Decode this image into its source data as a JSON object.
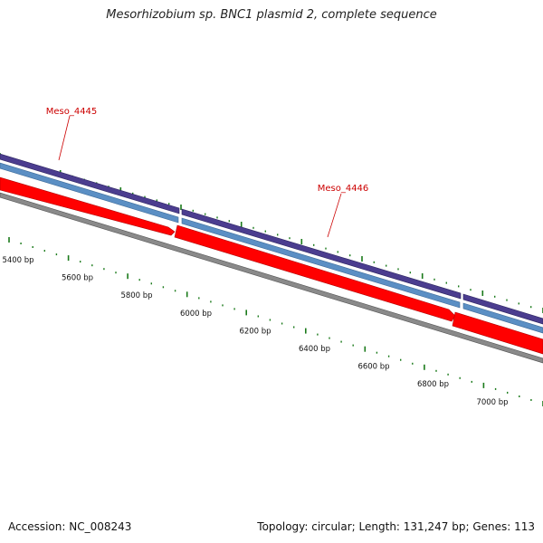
{
  "title": "Mesorhizobium sp. BNC1 plasmid 2, complete sequence",
  "footer": {
    "accession": "Accession: NC_008243",
    "summary": "Topology: circular; Length: 131,247 bp; Genes: 113"
  },
  "colors": {
    "gene": "#ff0000",
    "gene_label": "#cc0000",
    "track_dark": "#4b3d8f",
    "track_light": "#5b8fc4",
    "backbone": "#808080",
    "ticks": "#1a7a1a"
  },
  "genes": [
    {
      "name": "Meso_4445"
    },
    {
      "name": "Meso_4446"
    }
  ],
  "scale_labels": [
    "5400 bp",
    "5600 bp",
    "5800 bp",
    "6000 bp",
    "6200 bp",
    "6400 bp",
    "6600 bp",
    "6800 bp",
    "7000 bp"
  ]
}
